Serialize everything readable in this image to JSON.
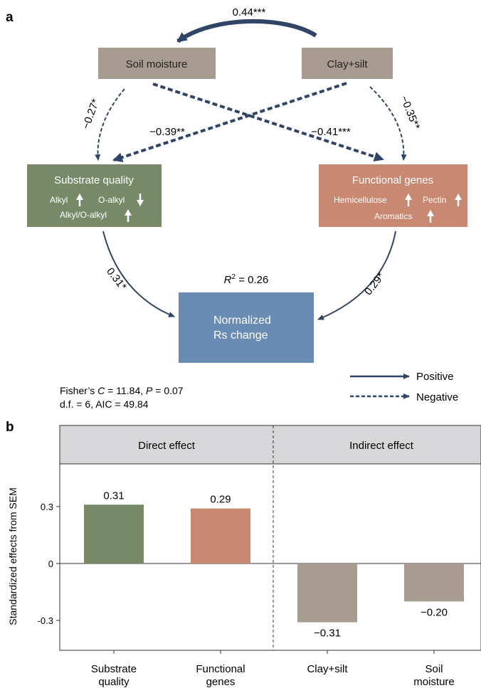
{
  "panel_a": {
    "label": "a",
    "nodes": {
      "soil_moisture": "Soil moisture",
      "clay_silt": "Clay+silt",
      "substrate": {
        "title": "Substrate quality",
        "items": [
          "Alkyl",
          "O-alkyl",
          "Alkyl/O-alkyl"
        ]
      },
      "genes": {
        "title": "Functional genes",
        "items": [
          "Hemicellulose",
          "Pectin",
          "Aromatics"
        ]
      },
      "rs": {
        "line1": "Normalized",
        "line2": "Rs change"
      }
    },
    "paths": {
      "clay_to_soil": "0.44***",
      "soil_to_substrate": "−0.27*",
      "clay_to_substrate": "−0.39**",
      "soil_to_genes": "−0.41***",
      "clay_to_genes": "−0.35**",
      "substrate_to_rs": "0.31*",
      "genes_to_rs": "0.29*"
    },
    "r2_symbol": "R",
    "r2_sup": "2",
    "r2_value": " = 0.26",
    "stats": {
      "fisher_prefix": "Fisher’s ",
      "fisher_c": "C",
      "fisher_mid": " = 11.84, ",
      "fisher_p": "P",
      "fisher_end": " = 0.07",
      "line2": "d.f. = 6, AIC = 49.84"
    },
    "legend": {
      "positive": "Positive",
      "negative": "Negative"
    }
  },
  "panel_b": {
    "label": "b",
    "direct_header": "Direct effect",
    "indirect_header": "Indirect effect"
  },
  "chart_data": {
    "type": "bar",
    "categories": [
      [
        "Substrate",
        "quality"
      ],
      [
        "Functional",
        "genes"
      ],
      [
        "Clay+silt"
      ],
      [
        "Soil",
        "moisture"
      ]
    ],
    "values": [
      0.31,
      0.29,
      -0.31,
      -0.2
    ],
    "value_labels": [
      "0.31",
      "0.29",
      "−0.31",
      "−0.20"
    ],
    "colors": [
      "#778a68",
      "#c98871",
      "#a89c91",
      "#a89c91"
    ],
    "ylabel": "Standardized effects from SEM",
    "ylim": [
      -0.45,
      0.53
    ],
    "yticks": [
      0.3,
      0,
      -0.3
    ],
    "ytick_labels": [
      "0.3",
      "0",
      "-0.3"
    ]
  },
  "colors": {
    "soil_node": "#a89c91",
    "substrate_node": "#778a68",
    "genes_node": "#c98871",
    "rs_node": "#6a8bb3",
    "arrow": "#2f4466",
    "header_bg": "#d7d7d9"
  }
}
